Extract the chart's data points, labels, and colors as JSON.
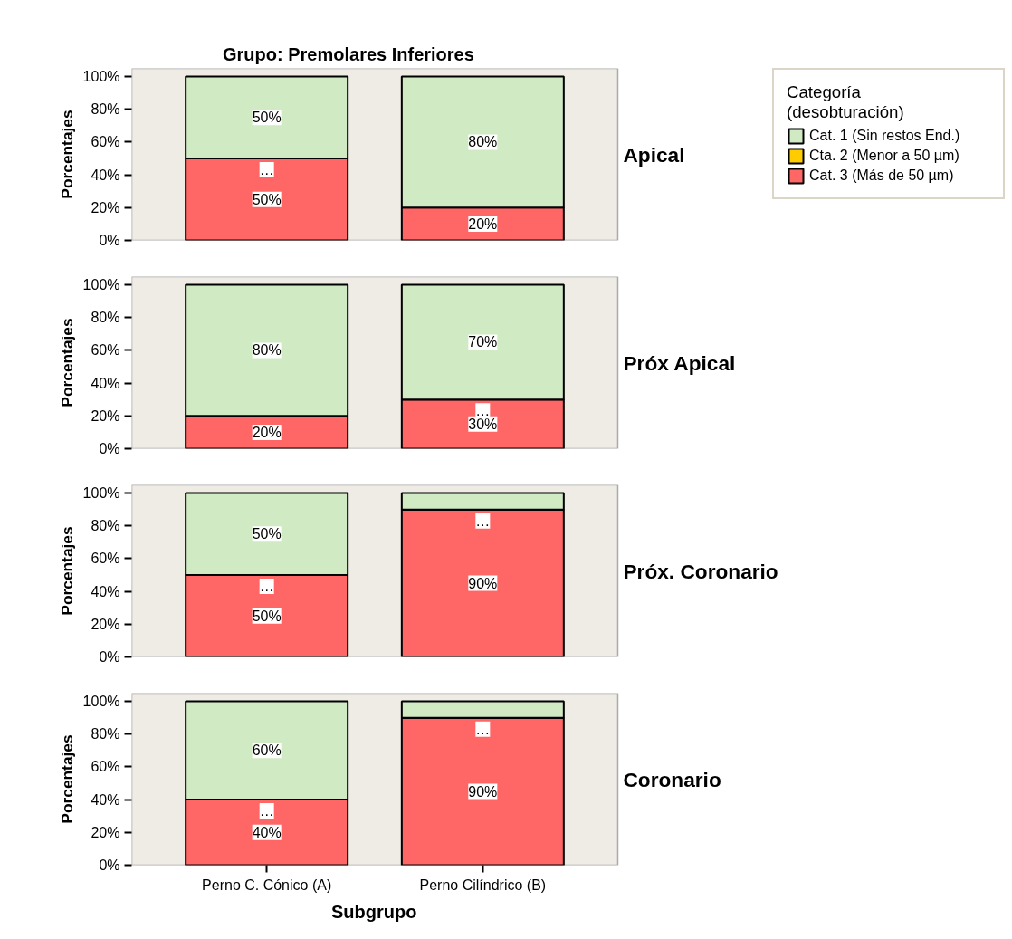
{
  "chart_data": [
    {
      "type": "bar",
      "stacked": true,
      "title": "Grupo: Premolares Inferiores",
      "ylabel": "Porcentajes",
      "legend": "right",
      "legend_title": "Categoría\n(desobturación)",
      "tick_labels": "y",
      "annotations": [
        "Apical",
        {
          "text": "…",
          "x": "Perno C. Cónico (A)",
          "y": 50
        }
      ],
      "categories": [
        "Perno C. Cónico (A)",
        "Perno Cilíndrico (B)"
      ],
      "ylim": [
        0,
        105
      ],
      "yticks": [
        {
          "value": 0,
          "label": "0%"
        },
        {
          "value": 20,
          "label": "20%"
        },
        {
          "value": 40,
          "label": "40%"
        },
        {
          "value": 60,
          "label": "60%"
        },
        {
          "value": 80,
          "label": "80%"
        },
        {
          "value": 100,
          "label": "100%"
        }
      ],
      "series": [
        {
          "name": "Cat. 3 (Más de 50 µm)",
          "color": "#ff6666",
          "values": [
            50,
            20
          ],
          "value_labels": [
            "50%",
            "20%"
          ]
        },
        {
          "name": "Cta. 2 (Menor a 50 µm)",
          "color": "#ffcc00",
          "values": [
            0,
            null
          ]
        },
        {
          "name": "Cat. 1 (Sin restos End.)",
          "color": "#d0eac4",
          "values": [
            50,
            80
          ],
          "value_labels": [
            "50%",
            "80%"
          ]
        }
      ]
    },
    {
      "type": "bar",
      "stacked": true,
      "ylabel": "Porcentajes",
      "tick_labels": "y",
      "annotations": [
        "Próx Apical",
        {
          "text": "…",
          "x": "Perno Cilíndrico (B)",
          "y": 30
        }
      ],
      "categories": [
        "Perno C. Cónico (A)",
        "Perno Cilíndrico (B)"
      ],
      "ylim": [
        0,
        105
      ],
      "yticks": [
        {
          "value": 0,
          "label": "0%"
        },
        {
          "value": 20,
          "label": "20%"
        },
        {
          "value": 40,
          "label": "40%"
        },
        {
          "value": 60,
          "label": "60%"
        },
        {
          "value": 80,
          "label": "80%"
        },
        {
          "value": 100,
          "label": "100%"
        }
      ],
      "series": [
        {
          "color": "#ff6666",
          "values": [
            20,
            30
          ],
          "value_labels": [
            "20%",
            "30%"
          ]
        },
        {
          "color": "#ffcc00",
          "values": [
            null,
            0
          ]
        },
        {
          "color": "#d0eac4",
          "values": [
            80,
            70
          ],
          "value_labels": [
            "80%",
            "70%"
          ]
        }
      ]
    },
    {
      "type": "bar",
      "stacked": true,
      "ylabel": "Porcentajes",
      "tick_labels": "y",
      "annotations": [
        "Próx. Coronario",
        {
          "text": "…",
          "x": "Perno C. Cónico (A)",
          "y": 50
        },
        {
          "text": "…",
          "x": "Perno Cilíndrico (B)",
          "y": 90
        }
      ],
      "categories": [
        "Perno C. Cónico (A)",
        "Perno Cilíndrico (B)"
      ],
      "ylim": [
        0,
        105
      ],
      "yticks": [
        {
          "value": 0,
          "label": "0%"
        },
        {
          "value": 20,
          "label": "20%"
        },
        {
          "value": 40,
          "label": "40%"
        },
        {
          "value": 60,
          "label": "60%"
        },
        {
          "value": 80,
          "label": "80%"
        },
        {
          "value": 100,
          "label": "100%"
        }
      ],
      "series": [
        {
          "color": "#ff6666",
          "values": [
            50,
            90
          ],
          "value_labels": [
            "50%",
            "90%"
          ]
        },
        {
          "color": "#ffcc00",
          "values": [
            0,
            0
          ]
        },
        {
          "color": "#d0eac4",
          "values": [
            50,
            10
          ],
          "value_labels": [
            "50%",
            null
          ]
        }
      ]
    },
    {
      "type": "bar",
      "stacked": true,
      "ylabel": "Porcentajes",
      "xlabel": "Subgrupo",
      "annotations": [
        "Coronario",
        {
          "text": "…",
          "x": "Perno C. Cónico (A)",
          "y": 40
        },
        {
          "text": "…",
          "x": "Perno Cilíndrico (B)",
          "y": 90
        }
      ],
      "categories": [
        "Perno C. Cónico (A)",
        "Perno Cilíndrico (B)"
      ],
      "ylim": [
        0,
        105
      ],
      "yticks": [
        {
          "value": 0,
          "label": "0%"
        },
        {
          "value": 20,
          "label": "20%"
        },
        {
          "value": 40,
          "label": "40%"
        },
        {
          "value": 60,
          "label": "60%"
        },
        {
          "value": 80,
          "label": "80%"
        },
        {
          "value": 100,
          "label": "100%"
        }
      ],
      "series": [
        {
          "color": "#ff6666",
          "values": [
            40,
            90
          ],
          "value_labels": [
            "40%",
            "90%"
          ]
        },
        {
          "color": "#ffcc00",
          "values": [
            0,
            0
          ]
        },
        {
          "color": "#d0eac4",
          "values": [
            60,
            10
          ],
          "value_labels": [
            "60%",
            null
          ]
        }
      ]
    }
  ]
}
